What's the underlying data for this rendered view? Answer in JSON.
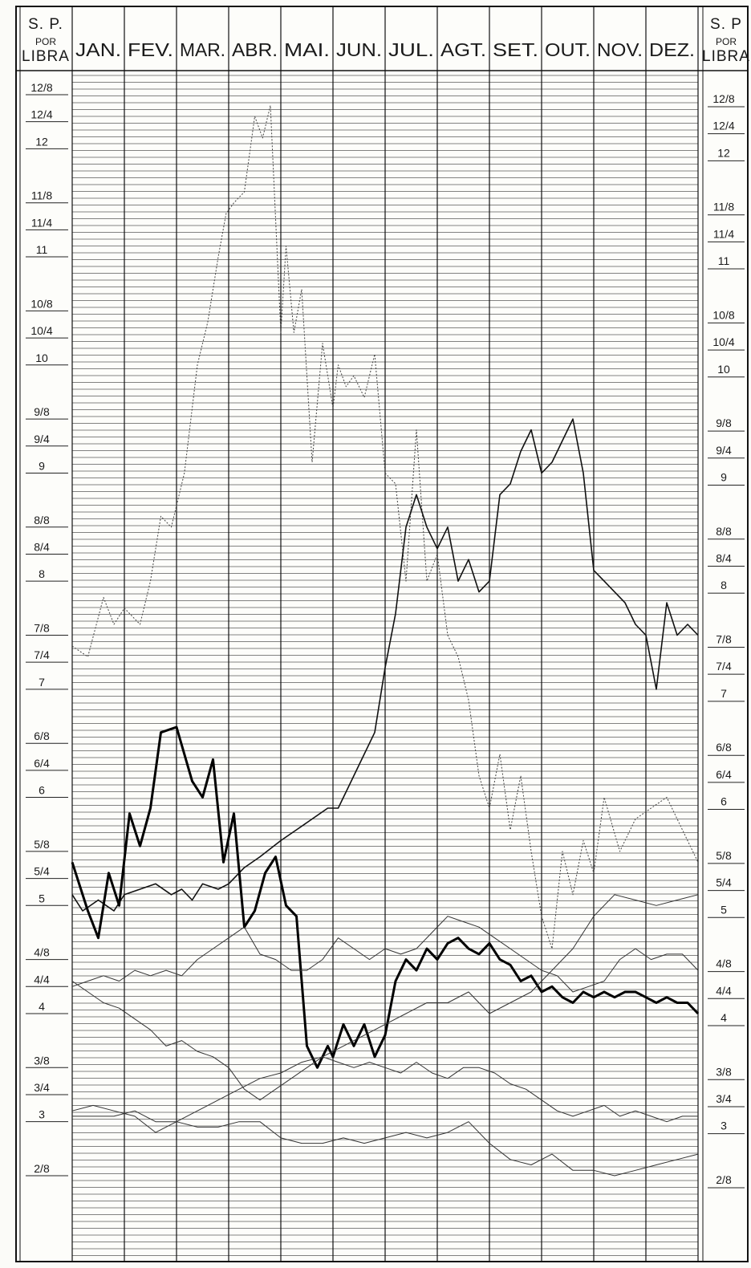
{
  "chart_data": {
    "type": "line",
    "axis_title_lines": [
      "S. P.",
      "POR",
      "LIBRA"
    ],
    "axis_title_right_lines": [
      "S. P",
      "POR",
      "LIBRA"
    ],
    "months": [
      "JAN.",
      "FEV.",
      "MAR.",
      "ABR.",
      "MAI.",
      "JUN.",
      "JUL.",
      "AGT.",
      "SET.",
      "OUT.",
      "NOV.",
      "DEZ."
    ],
    "ticks": [
      {
        "value": 12.5,
        "label": "12/8"
      },
      {
        "value": 12.25,
        "label": "12/4"
      },
      {
        "value": 12.0,
        "label": "12"
      },
      {
        "value": 11.5,
        "label": "11/8"
      },
      {
        "value": 11.25,
        "label": "11/4"
      },
      {
        "value": 11.0,
        "label": "11"
      },
      {
        "value": 10.5,
        "label": "10/8"
      },
      {
        "value": 10.25,
        "label": "10/4"
      },
      {
        "value": 10.0,
        "label": "10"
      },
      {
        "value": 9.5,
        "label": "9/8"
      },
      {
        "value": 9.25,
        "label": "9/4"
      },
      {
        "value": 9.0,
        "label": "9"
      },
      {
        "value": 8.5,
        "label": "8/8"
      },
      {
        "value": 8.25,
        "label": "8/4"
      },
      {
        "value": 8.0,
        "label": "8"
      },
      {
        "value": 7.5,
        "label": "7/8"
      },
      {
        "value": 7.25,
        "label": "7/4"
      },
      {
        "value": 7.0,
        "label": "7"
      },
      {
        "value": 6.5,
        "label": "6/8"
      },
      {
        "value": 6.25,
        "label": "6/4"
      },
      {
        "value": 6.0,
        "label": "6"
      },
      {
        "value": 5.5,
        "label": "5/8"
      },
      {
        "value": 5.25,
        "label": "5/4"
      },
      {
        "value": 5.0,
        "label": "5"
      },
      {
        "value": 4.5,
        "label": "4/8"
      },
      {
        "value": 4.25,
        "label": "4/4"
      },
      {
        "value": 4.0,
        "label": "4"
      },
      {
        "value": 3.5,
        "label": "3/8"
      },
      {
        "value": 3.25,
        "label": "3/4"
      },
      {
        "value": 3.0,
        "label": "3"
      },
      {
        "value": 2.5,
        "label": "2/8"
      }
    ],
    "ylim": [
      2.5,
      12.5
    ],
    "xlim": [
      0,
      12
    ],
    "grid": true,
    "series": [
      {
        "style": "dotted",
        "x": [
          0.0,
          0.3,
          0.6,
          0.8,
          1.0,
          1.3,
          1.5,
          1.7,
          1.9,
          2.15,
          2.4,
          2.6,
          2.8,
          2.95,
          3.1,
          3.3,
          3.5,
          3.65,
          3.8,
          4.0,
          4.1,
          4.25,
          4.4,
          4.6,
          4.8,
          5.0,
          5.1,
          5.25,
          5.4,
          5.6,
          5.8,
          6.0,
          6.2,
          6.4,
          6.6,
          6.8,
          7.0,
          7.2,
          7.4,
          7.6,
          7.8,
          8.0,
          8.2,
          8.4,
          8.6,
          8.8,
          9.0,
          9.2,
          9.4,
          9.6,
          9.8,
          10.0,
          10.2,
          10.5,
          10.8,
          11.1,
          11.4,
          11.7,
          12.0
        ],
        "values": [
          7.4,
          7.3,
          7.85,
          7.6,
          7.75,
          7.6,
          8.0,
          8.6,
          8.5,
          9.0,
          10.0,
          10.4,
          11.0,
          11.4,
          11.5,
          11.6,
          12.3,
          12.1,
          12.4,
          10.3,
          11.1,
          10.3,
          10.7,
          9.1,
          10.2,
          9.6,
          10.0,
          9.8,
          9.9,
          9.7,
          10.1,
          9.0,
          8.9,
          8.0,
          9.4,
          8.0,
          8.25,
          7.5,
          7.3,
          6.9,
          6.2,
          5.9,
          6.4,
          5.7,
          6.2,
          5.5,
          4.9,
          4.6,
          5.5,
          5.1,
          5.6,
          5.3,
          6.0,
          5.5,
          5.8,
          5.9,
          6.0,
          5.7,
          5.4
        ]
      },
      {
        "style": "medium",
        "x": [
          0.0,
          0.2,
          0.5,
          0.8,
          1.0,
          1.3,
          1.6,
          1.9,
          2.1,
          2.3,
          2.5,
          2.8,
          3.0,
          3.3,
          3.6,
          4.0,
          4.3,
          4.6,
          4.9,
          5.1,
          5.3,
          5.5,
          5.8,
          6.0,
          6.2,
          6.4,
          6.6,
          6.8,
          7.0,
          7.2,
          7.4,
          7.6,
          7.8,
          8.0,
          8.2,
          8.4,
          8.6,
          8.8,
          9.0,
          9.2,
          9.4,
          9.6,
          9.8,
          10.0,
          10.2,
          10.4,
          10.6,
          10.8,
          11.0,
          11.2,
          11.4,
          11.6,
          11.8,
          12.0
        ],
        "values": [
          5.1,
          4.95,
          5.05,
          4.95,
          5.1,
          5.15,
          5.2,
          5.1,
          5.15,
          5.05,
          5.2,
          5.15,
          5.2,
          5.35,
          5.45,
          5.6,
          5.7,
          5.8,
          5.9,
          5.9,
          6.1,
          6.3,
          6.6,
          7.2,
          7.7,
          8.5,
          8.8,
          8.5,
          8.3,
          8.5,
          8.0,
          8.2,
          7.9,
          8.0,
          8.8,
          8.9,
          9.2,
          9.4,
          9.0,
          9.1,
          9.3,
          9.5,
          9.0,
          8.1,
          8.0,
          7.9,
          7.8,
          7.6,
          7.5,
          7.0,
          7.8,
          7.5,
          7.6,
          7.5
        ]
      },
      {
        "style": "bold",
        "x": [
          0.0,
          0.3,
          0.5,
          0.7,
          0.9,
          1.1,
          1.3,
          1.5,
          1.7,
          2.0,
          2.3,
          2.5,
          2.7,
          2.9,
          3.1,
          3.3,
          3.5,
          3.7,
          3.9,
          4.1,
          4.3,
          4.5,
          4.7,
          4.9,
          5.0,
          5.2,
          5.4,
          5.6,
          5.8,
          6.0,
          6.2,
          6.4,
          6.6,
          6.8,
          7.0,
          7.2,
          7.4,
          7.6,
          7.8,
          8.0,
          8.2,
          8.4,
          8.6,
          8.8,
          9.0,
          9.2,
          9.4,
          9.6,
          9.8,
          10.0,
          10.2,
          10.4,
          10.6,
          10.8,
          11.0,
          11.2,
          11.4,
          11.6,
          11.8,
          12.0
        ],
        "values": [
          5.4,
          4.95,
          4.7,
          5.3,
          5.0,
          5.85,
          5.55,
          5.9,
          6.6,
          6.65,
          6.15,
          6.0,
          6.35,
          5.4,
          5.85,
          4.8,
          4.95,
          5.3,
          5.45,
          5.0,
          4.9,
          3.7,
          3.5,
          3.7,
          3.6,
          3.9,
          3.7,
          3.9,
          3.6,
          3.8,
          4.3,
          4.5,
          4.4,
          4.6,
          4.5,
          4.65,
          4.7,
          4.6,
          4.55,
          4.65,
          4.5,
          4.45,
          4.3,
          4.35,
          4.2,
          4.25,
          4.15,
          4.1,
          4.2,
          4.15,
          4.2,
          4.15,
          4.2,
          4.2,
          4.15,
          4.1,
          4.15,
          4.1,
          4.1,
          4.0
        ]
      },
      {
        "style": "thin",
        "x": [
          0.0,
          0.3,
          0.6,
          0.9,
          1.2,
          1.5,
          1.8,
          2.1,
          2.4,
          2.7,
          3.0,
          3.3,
          3.6,
          3.9,
          4.2,
          4.5,
          4.8,
          5.1,
          5.4,
          5.7,
          6.0,
          6.3,
          6.6,
          6.9,
          7.2,
          7.5,
          7.8,
          8.1,
          8.4,
          8.7,
          9.0,
          9.3,
          9.6,
          9.9,
          10.2,
          10.5,
          10.8,
          11.1,
          11.4,
          11.7,
          12.0
        ],
        "values": [
          4.25,
          4.3,
          4.35,
          4.3,
          4.4,
          4.35,
          4.4,
          4.35,
          4.5,
          4.6,
          4.7,
          4.8,
          4.55,
          4.5,
          4.4,
          4.4,
          4.5,
          4.7,
          4.6,
          4.5,
          4.6,
          4.55,
          4.6,
          4.75,
          4.9,
          4.85,
          4.8,
          4.7,
          4.6,
          4.5,
          4.4,
          4.35,
          4.2,
          4.25,
          4.3,
          4.5,
          4.6,
          4.5,
          4.55,
          4.55,
          4.4
        ]
      },
      {
        "style": "thin",
        "x": [
          0.0,
          0.3,
          0.6,
          0.9,
          1.2,
          1.5,
          1.8,
          2.1,
          2.4,
          2.7,
          3.0,
          3.3,
          3.6,
          3.9,
          4.2,
          4.5,
          4.8,
          5.1,
          5.4,
          5.7,
          6.0,
          6.3,
          6.6,
          6.9,
          7.2,
          7.5,
          7.8,
          8.1,
          8.4,
          8.7,
          9.0,
          9.3,
          9.6,
          9.9,
          10.2,
          10.5,
          10.8,
          11.1,
          11.4,
          11.7,
          12.0
        ],
        "values": [
          4.3,
          4.2,
          4.1,
          4.05,
          3.95,
          3.85,
          3.7,
          3.75,
          3.65,
          3.6,
          3.5,
          3.3,
          3.2,
          3.3,
          3.4,
          3.5,
          3.6,
          3.55,
          3.5,
          3.55,
          3.5,
          3.45,
          3.55,
          3.45,
          3.4,
          3.5,
          3.5,
          3.45,
          3.35,
          3.3,
          3.2,
          3.1,
          3.05,
          3.1,
          3.15,
          3.05,
          3.1,
          3.05,
          3.0,
          3.05,
          3.05
        ]
      },
      {
        "style": "thin",
        "x": [
          0.0,
          0.4,
          0.8,
          1.2,
          1.6,
          2.0,
          2.4,
          2.8,
          3.2,
          3.6,
          4.0,
          4.4,
          4.8,
          5.2,
          5.6,
          6.0,
          6.4,
          6.8,
          7.2,
          7.6,
          8.0,
          8.4,
          8.8,
          9.2,
          9.6,
          10.0,
          10.4,
          10.8,
          11.2,
          11.6,
          12.0
        ],
        "values": [
          3.1,
          3.15,
          3.1,
          3.05,
          2.9,
          3.0,
          3.1,
          3.2,
          3.3,
          3.4,
          3.45,
          3.55,
          3.6,
          3.7,
          3.8,
          3.9,
          4.0,
          4.1,
          4.1,
          4.2,
          4.0,
          4.1,
          4.2,
          4.4,
          4.6,
          4.9,
          5.1,
          5.05,
          5.0,
          5.05,
          5.1
        ]
      },
      {
        "style": "thin",
        "x": [
          0.0,
          0.4,
          0.8,
          1.2,
          1.6,
          2.0,
          2.4,
          2.8,
          3.2,
          3.6,
          4.0,
          4.4,
          4.8,
          5.2,
          5.6,
          6.0,
          6.4,
          6.8,
          7.2,
          7.6,
          8.0,
          8.4,
          8.8,
          9.2,
          9.6,
          10.0,
          10.4,
          10.8,
          11.2,
          11.6,
          12.0
        ],
        "values": [
          3.05,
          3.05,
          3.05,
          3.1,
          3.0,
          3.0,
          2.95,
          2.95,
          3.0,
          3.0,
          2.85,
          2.8,
          2.8,
          2.85,
          2.8,
          2.85,
          2.9,
          2.85,
          2.9,
          3.0,
          2.8,
          2.65,
          2.6,
          2.7,
          2.55,
          2.55,
          2.5,
          2.55,
          2.6,
          2.65,
          2.7
        ]
      }
    ]
  }
}
